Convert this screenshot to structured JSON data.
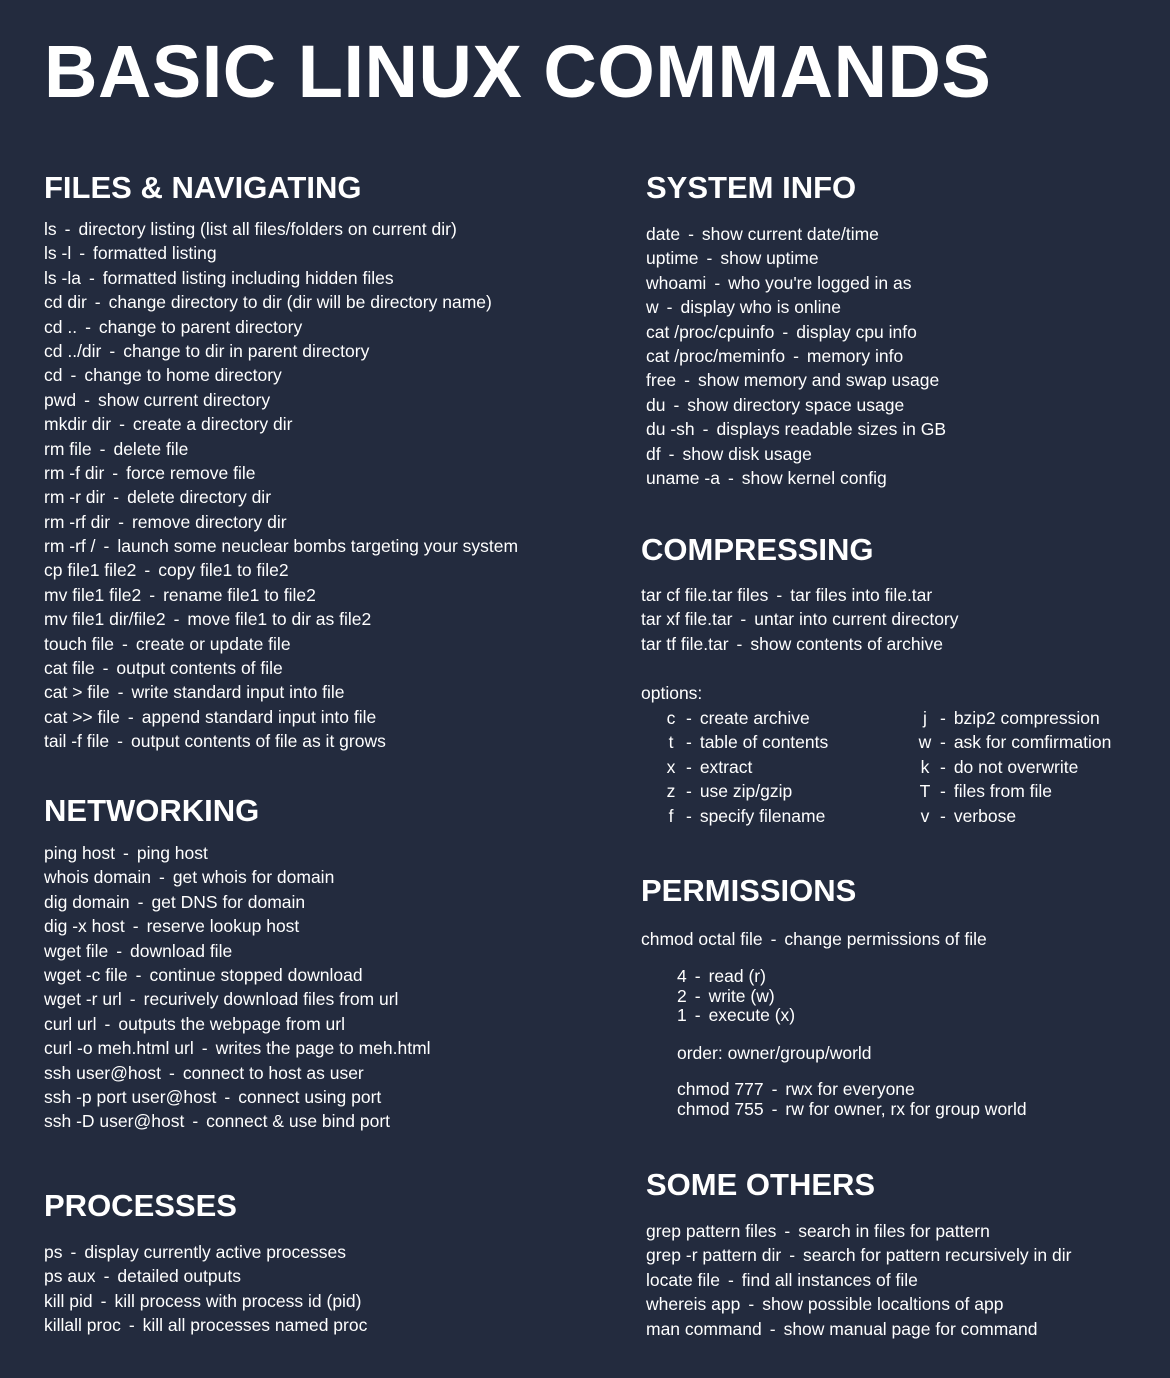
{
  "title": "BASIC LINUX COMMANDS",
  "separator": "-",
  "files": {
    "title": "FILES & NAVIGATING",
    "items": [
      {
        "cmd": "ls",
        "desc": "directory listing (list all files/folders on current dir)"
      },
      {
        "cmd": "ls -l",
        "desc": "formatted listing"
      },
      {
        "cmd": "ls -la",
        "desc": "formatted listing including hidden files"
      },
      {
        "cmd": "cd dir",
        "desc": "change directory to dir (dir will be directory name)"
      },
      {
        "cmd": "cd ..",
        "desc": "change to parent directory"
      },
      {
        "cmd": "cd ../dir",
        "desc": "change to dir in parent directory"
      },
      {
        "cmd": "cd",
        "desc": "change to home directory"
      },
      {
        "cmd": "pwd",
        "desc": "show current directory"
      },
      {
        "cmd": "mkdir dir",
        "desc": "create a directory dir"
      },
      {
        "cmd": "rm file",
        "desc": "delete file"
      },
      {
        "cmd": "rm -f dir",
        "desc": "force remove file"
      },
      {
        "cmd": "rm -r dir",
        "desc": "delete directory dir"
      },
      {
        "cmd": "rm -rf dir",
        "desc": "remove directory dir"
      },
      {
        "cmd": "rm -rf /",
        "desc": "launch some neuclear bombs targeting your system"
      },
      {
        "cmd": "cp file1 file2",
        "desc": "copy file1 to file2"
      },
      {
        "cmd": "mv file1 file2",
        "desc": "rename file1 to file2"
      },
      {
        "cmd": "mv file1 dir/file2",
        "desc": "move file1 to dir as file2"
      },
      {
        "cmd": "touch file",
        "desc": "create or update file"
      },
      {
        "cmd": "cat file",
        "desc": "output contents of file"
      },
      {
        "cmd": "cat > file",
        "desc": "write standard input into file"
      },
      {
        "cmd": "cat >> file",
        "desc": "append standard input into file"
      },
      {
        "cmd": "tail -f file",
        "desc": "output contents of file as it grows"
      }
    ]
  },
  "networking": {
    "title": "NETWORKING",
    "items": [
      {
        "cmd": "ping host",
        "desc": "ping host"
      },
      {
        "cmd": "whois domain",
        "desc": "get whois for domain"
      },
      {
        "cmd": "dig domain",
        "desc": "get DNS for domain"
      },
      {
        "cmd": "dig -x host",
        "desc": "reserve lookup host"
      },
      {
        "cmd": "wget file",
        "desc": "download file"
      },
      {
        "cmd": "wget -c file",
        "desc": "continue stopped download"
      },
      {
        "cmd": "wget -r url",
        "desc": "recurively download files from url"
      },
      {
        "cmd": "curl url",
        "desc": "outputs the webpage from url"
      },
      {
        "cmd": "curl -o meh.html url",
        "desc": "writes the page to meh.html"
      },
      {
        "cmd": "ssh user@host",
        "desc": "connect to host as user"
      },
      {
        "cmd": "ssh -p port user@host",
        "desc": "connect using port"
      },
      {
        "cmd": "ssh -D user@host",
        "desc": "connect & use bind port"
      }
    ]
  },
  "processes": {
    "title": "PROCESSES",
    "items": [
      {
        "cmd": "ps",
        "desc": "display currently active processes"
      },
      {
        "cmd": "ps aux",
        "desc": "detailed outputs"
      },
      {
        "cmd": "kill pid",
        "desc": "kill process with process id (pid)"
      },
      {
        "cmd": "killall proc",
        "desc": "kill all processes named proc"
      }
    ]
  },
  "system": {
    "title": "SYSTEM INFO",
    "items": [
      {
        "cmd": "date",
        "desc": "show current date/time"
      },
      {
        "cmd": "uptime",
        "desc": "show uptime"
      },
      {
        "cmd": "whoami",
        "desc": "who you're logged in as"
      },
      {
        "cmd": "w",
        "desc": "display who is online"
      },
      {
        "cmd": "cat /proc/cpuinfo",
        "desc": "display cpu info"
      },
      {
        "cmd": "cat /proc/meminfo",
        "desc": "memory info"
      },
      {
        "cmd": "free",
        "desc": "show memory and swap usage"
      },
      {
        "cmd": "du",
        "desc": "show directory space usage"
      },
      {
        "cmd": "du -sh",
        "desc": "displays readable sizes in GB"
      },
      {
        "cmd": "df",
        "desc": "show disk usage"
      },
      {
        "cmd": "uname -a",
        "desc": "show kernel config"
      }
    ]
  },
  "compressing": {
    "title": "COMPRESSING",
    "items": [
      {
        "cmd": "tar cf file.tar files",
        "desc": "tar files into file.tar"
      },
      {
        "cmd": "tar xf file.tar",
        "desc": "untar into current directory"
      },
      {
        "cmd": "tar tf file.tar",
        "desc": "show contents of archive"
      }
    ],
    "options_label": "options:",
    "options_left": [
      {
        "flag": "c",
        "desc": "create archive"
      },
      {
        "flag": "t",
        "desc": "table of contents"
      },
      {
        "flag": "x",
        "desc": "extract"
      },
      {
        "flag": "z",
        "desc": "use zip/gzip"
      },
      {
        "flag": "f",
        "desc": "specify filename"
      }
    ],
    "options_right": [
      {
        "flag": "j",
        "desc": "bzip2 compression"
      },
      {
        "flag": "w",
        "desc": "ask for comfirmation"
      },
      {
        "flag": "k",
        "desc": "do not overwrite"
      },
      {
        "flag": "T",
        "desc": "files from file"
      },
      {
        "flag": "v",
        "desc": "verbose"
      }
    ]
  },
  "permissions": {
    "title": "PERMISSIONS",
    "main": {
      "cmd": "chmod octal file",
      "desc": "change permissions of file"
    },
    "octal": [
      {
        "cmd": "4",
        "desc": "read (r)"
      },
      {
        "cmd": "2",
        "desc": "write (w)"
      },
      {
        "cmd": "1",
        "desc": "execute (x)"
      }
    ],
    "order": "order: owner/group/world",
    "examples": [
      {
        "cmd": "chmod 777",
        "desc": "rwx for everyone"
      },
      {
        "cmd": "chmod 755",
        "desc": "rw for owner, rx for group world"
      }
    ]
  },
  "others": {
    "title": "SOME OTHERS",
    "items": [
      {
        "cmd": "grep pattern files",
        "desc": "search in files for pattern"
      },
      {
        "cmd": "grep -r pattern dir",
        "desc": "search for pattern recursively in dir"
      },
      {
        "cmd": "locate file",
        "desc": "find all instances of file"
      },
      {
        "cmd": "whereis app",
        "desc": "show possible localtions of app"
      },
      {
        "cmd": "man command",
        "desc": "show manual page for command"
      }
    ]
  }
}
